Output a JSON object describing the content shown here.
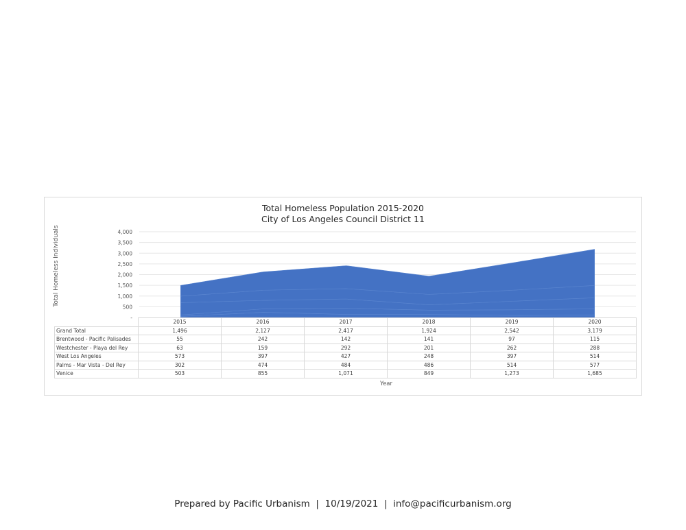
{
  "chart_data": {
    "type": "area",
    "stacked": true,
    "title": "Total Homeless Population 2015-2020",
    "subtitle": "City of Los Angeles Council District 11",
    "xlabel": "Year",
    "ylabel": "Total Homeless Individuals",
    "ylim": [
      0,
      4000
    ],
    "yticks": [
      "-",
      "500",
      "1,000",
      "1,500",
      "2,000",
      "2,500",
      "3,000",
      "3,500",
      "4,000"
    ],
    "grid": true,
    "legend": "data table below chart",
    "categories": [
      "2015",
      "2016",
      "2017",
      "2018",
      "2019",
      "2020"
    ],
    "totals": {
      "name": "Grand Total",
      "values": [
        1496,
        2127,
        2417,
        1924,
        2542,
        3179
      ],
      "labels": [
        "1,496",
        "2,127",
        "2,417",
        "1,924",
        "2,542",
        "3,179"
      ]
    },
    "series": [
      {
        "name": "Brentwood - Pacific Palisades",
        "values": [
          55,
          242,
          142,
          141,
          97,
          115
        ],
        "labels": [
          "55",
          "242",
          "142",
          "141",
          "97",
          "115"
        ]
      },
      {
        "name": "Westchester - Playa del Rey",
        "values": [
          63,
          159,
          292,
          201,
          262,
          288
        ],
        "labels": [
          "63",
          "159",
          "292",
          "201",
          "262",
          "288"
        ]
      },
      {
        "name": "West Los Angeles",
        "values": [
          573,
          397,
          427,
          248,
          397,
          514
        ],
        "labels": [
          "573",
          "397",
          "427",
          "248",
          "397",
          "514"
        ]
      },
      {
        "name": "Palms - Mar Vista - Del Rey",
        "values": [
          302,
          474,
          484,
          486,
          514,
          577
        ],
        "labels": [
          "302",
          "474",
          "484",
          "486",
          "514",
          "577"
        ]
      },
      {
        "name": "Venice",
        "values": [
          503,
          855,
          1071,
          849,
          1273,
          1685
        ],
        "labels": [
          "503",
          "855",
          "1,071",
          "849",
          "1,273",
          "1,685"
        ]
      }
    ],
    "colors": {
      "area": "#4472c4",
      "grid": "#e6e6e6",
      "series_edge": "#5b86d0"
    }
  },
  "footer": {
    "text": "Prepared by Pacific Urbanism  |  10/19/2021  |  info@pacificurbanism.org"
  }
}
